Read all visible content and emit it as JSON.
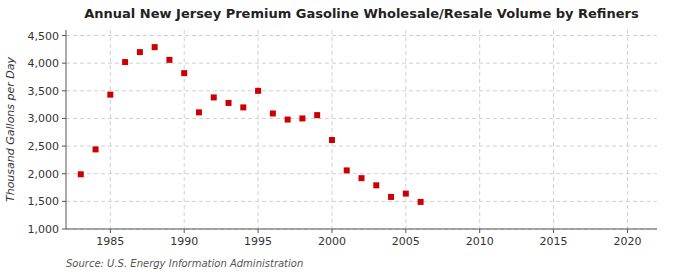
{
  "chart_data": {
    "type": "scatter",
    "title": "Annual New Jersey Premium Gasoline Wholesale/Resale Volume by Refiners",
    "ylabel": "Thousand Gallons per Day",
    "source": "Source: U.S. Energy Information Administration",
    "x": [
      1983,
      1984,
      1985,
      1986,
      1987,
      1988,
      1989,
      1990,
      1991,
      1992,
      1993,
      1994,
      1995,
      1996,
      1997,
      1998,
      1999,
      2000,
      2001,
      2002,
      2003,
      2004,
      2005,
      2006
    ],
    "values": [
      1990,
      2440,
      3430,
      4020,
      4200,
      4290,
      4060,
      3820,
      3110,
      3380,
      3280,
      3200,
      3500,
      3090,
      2980,
      3000,
      3060,
      2610,
      2060,
      1920,
      1790,
      1580,
      1640,
      1490
    ],
    "color": "#cc0000",
    "marker": "square",
    "grid": true,
    "xlim": [
      1982,
      2022
    ],
    "ylim": [
      1000,
      4600
    ],
    "xticks": [
      1985,
      1990,
      1995,
      2000,
      2005,
      2010,
      2015,
      2020
    ],
    "yticks": [
      {
        "value": 1000,
        "label": "1,000"
      },
      {
        "value": 1500,
        "label": "1,500"
      },
      {
        "value": 2000,
        "label": "2,000"
      },
      {
        "value": 2500,
        "label": "2,500"
      },
      {
        "value": 3000,
        "label": "3,000"
      },
      {
        "value": 3500,
        "label": "3,500"
      },
      {
        "value": 4000,
        "label": "4,000"
      },
      {
        "value": 4500,
        "label": "4,500"
      }
    ]
  }
}
